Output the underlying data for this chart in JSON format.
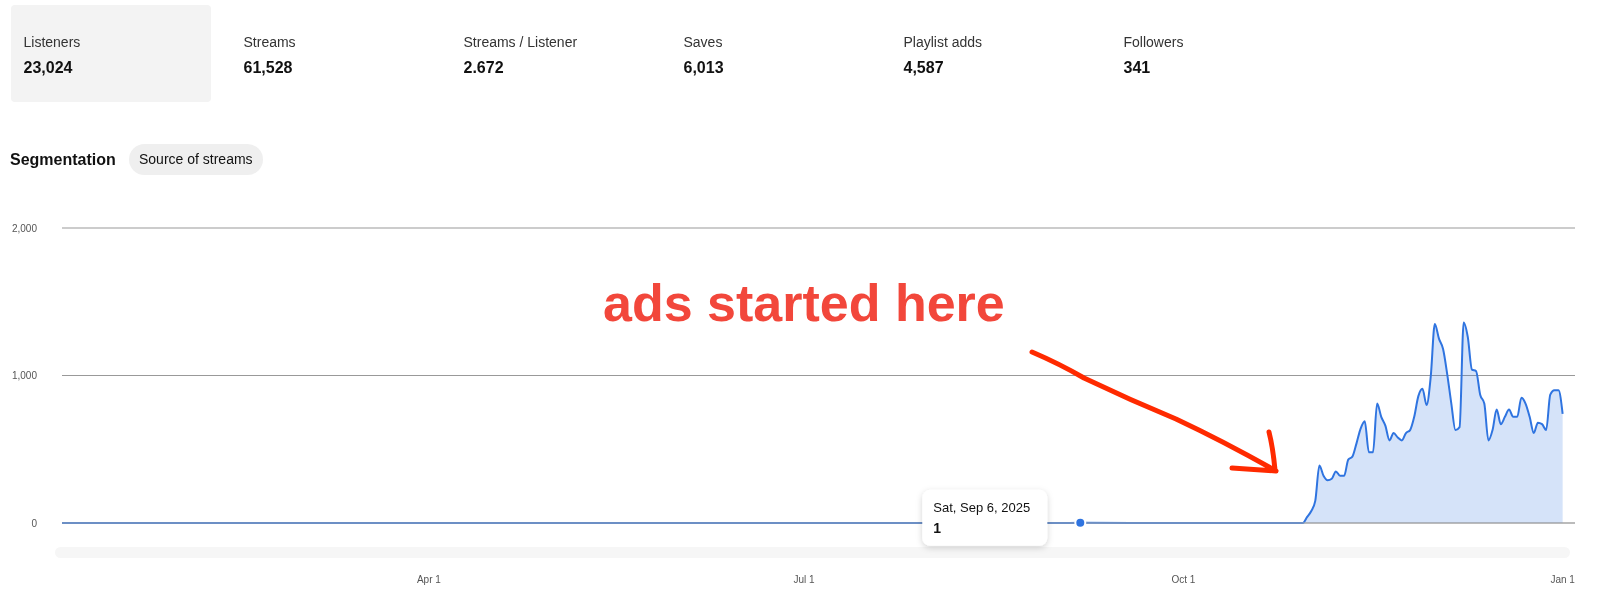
{
  "chart_data": [
    {
      "type": "other",
      "annotations": [
        "Listeners",
        "23,024",
        "Streams",
        "61,528",
        "Streams / Listener",
        "2.672",
        "Saves",
        "6,013",
        "Playlist adds",
        "4,587",
        "Followers",
        "341"
      ]
    },
    {
      "type": "area",
      "title": "Segmentation",
      "subtitle": "Source of streams",
      "x": [
        "2025-01-02",
        "2025-02-01",
        "2025-03-01",
        "2025-04-01",
        "2025-05-01",
        "2025-06-01",
        "2025-07-01",
        "2025-07-20",
        "2025-09-01",
        "2025-09-06",
        "2025-10-01",
        "2025-10-15",
        "2025-10-29",
        "2025-10-30",
        "2025-10-31",
        "2025-11-01",
        "2025-11-02",
        "2025-11-03",
        "2025-11-04",
        "2025-11-05",
        "2025-11-06",
        "2025-11-07",
        "2025-11-08",
        "2025-11-09",
        "2025-11-10",
        "2025-11-11",
        "2025-11-12",
        "2025-11-13",
        "2025-11-14",
        "2025-11-15",
        "2025-11-16",
        "2025-11-17",
        "2025-11-18",
        "2025-11-19",
        "2025-11-20",
        "2025-11-21",
        "2025-11-22",
        "2025-11-23",
        "2025-11-24",
        "2025-11-25",
        "2025-11-26",
        "2025-11-27",
        "2025-11-28",
        "2025-11-29",
        "2025-11-30",
        "2025-12-01",
        "2025-12-02",
        "2025-12-03",
        "2025-12-04",
        "2025-12-05",
        "2025-12-06",
        "2025-12-07",
        "2025-12-08",
        "2025-12-09",
        "2025-12-10",
        "2025-12-11",
        "2025-12-12",
        "2025-12-13",
        "2025-12-14",
        "2025-12-15",
        "2025-12-16",
        "2025-12-17",
        "2025-12-18",
        "2025-12-19",
        "2025-12-20",
        "2025-12-21",
        "2025-12-22",
        "2025-12-23",
        "2025-12-24",
        "2025-12-25",
        "2025-12-26",
        "2025-12-27",
        "2025-12-28",
        "2025-12-29",
        "2025-12-30",
        "2025-12-31",
        "2026-01-01"
      ],
      "series": [
        {
          "color": "#2f74e0",
          "values": [
            0,
            0,
            0,
            0,
            0,
            0,
            0,
            0,
            0,
            1,
            0,
            0,
            0,
            0,
            40,
            80,
            150,
            390,
            320,
            290,
            300,
            350,
            320,
            320,
            430,
            450,
            540,
            640,
            690,
            480,
            480,
            810,
            720,
            660,
            560,
            610,
            580,
            560,
            610,
            630,
            720,
            860,
            910,
            800,
            990,
            1350,
            1250,
            1180,
            1010,
            810,
            630,
            650,
            1360,
            1260,
            1040,
            1030,
            870,
            810,
            560,
            630,
            770,
            670,
            720,
            770,
            720,
            720,
            850,
            810,
            720,
            610,
            680,
            670,
            630,
            870,
            900,
            900,
            740
          ]
        },
        {
          "type": "scatter",
          "color": "#2f74e0",
          "x": [
            "2025-09-06"
          ],
          "values": [
            1
          ]
        }
      ],
      "xlim": [
        "2025-01-02",
        "2026-01-04"
      ],
      "xticks": [
        {
          "value": "2025-04-01",
          "label": "Apr 1"
        },
        {
          "value": "2025-07-01",
          "label": "Jul 1"
        },
        {
          "value": "2025-10-01",
          "label": "Oct 1"
        },
        {
          "value": "2026-01-01",
          "label": "Jan 1"
        }
      ],
      "ylim": [
        0,
        2000
      ],
      "yticks": [
        0,
        {
          "value": 1000,
          "label": "1,000"
        },
        {
          "value": 2000,
          "label": "2,000"
        }
      ],
      "grid": "y",
      "annotations": [
        "ads started here",
        "Sat, Sep 6, 2025",
        "1"
      ]
    }
  ]
}
